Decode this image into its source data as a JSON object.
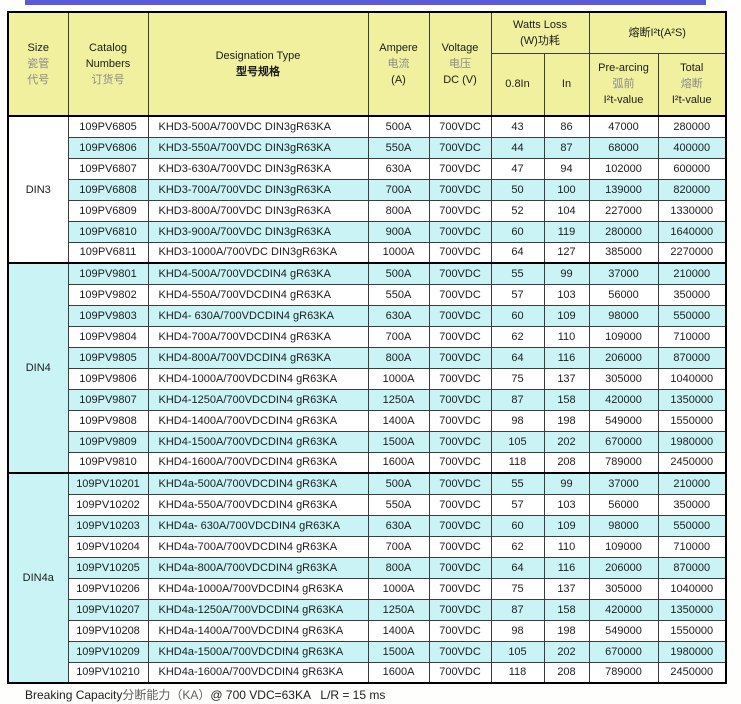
{
  "accents": {
    "top_bar_color": "#5b5bd8",
    "header_bg": "#f0f09e",
    "alt_row_bg": "#c9f3f5"
  },
  "header": {
    "size_en": "Size",
    "size_zh1": "瓷管",
    "size_zh2": "代号",
    "catalog_en1": "Catalog",
    "catalog_en2": "Numbers",
    "catalog_zh": "订货号",
    "designation_en": "Designation Type",
    "designation_zh": "型号规格",
    "ampere_en": "Ampere",
    "ampere_zh": "电流",
    "ampere_unit": "(A)",
    "voltage_en": "Voltage",
    "voltage_zh": "电压",
    "voltage_unit": "DC (V)",
    "watts_en": "Watts Loss",
    "watts_zh": "(W)功耗",
    "watts_sub_08": "0.8In",
    "watts_sub_in": "In",
    "i2t_group": "熔断I²t(A²S)",
    "prearcing_en": "Pre-arcing",
    "prearcing_zh": "弧前",
    "prearcing_val": "I²t-value",
    "total_en": "Total",
    "total_zh": "熔断",
    "total_val": "I²t-value"
  },
  "sections": [
    {
      "size": "DIN3",
      "rows": [
        {
          "catalog": "109PV6805",
          "designation": "KHD3-500A/700VDC DIN3gR63KA",
          "ampere": "500A",
          "voltage": "700VDC",
          "w08": "43",
          "win": "86",
          "pre": "47000",
          "total": "280000"
        },
        {
          "catalog": "109PV6806",
          "designation": "KHD3-550A/700VDC DIN3gR63KA",
          "ampere": "550A",
          "voltage": "700VDC",
          "w08": "44",
          "win": "87",
          "pre": "68000",
          "total": "400000"
        },
        {
          "catalog": "109PV6807",
          "designation": "KHD3-630A/700VDC DIN3gR63KA",
          "ampere": "630A",
          "voltage": "700VDC",
          "w08": "47",
          "win": "94",
          "pre": "102000",
          "total": "600000"
        },
        {
          "catalog": "109PV6808",
          "designation": "KHD3-700A/700VDC DIN3gR63KA",
          "ampere": "700A",
          "voltage": "700VDC",
          "w08": "50",
          "win": "100",
          "pre": "139000",
          "total": "820000"
        },
        {
          "catalog": "109PV6809",
          "designation": "KHD3-800A/700VDC DIN3gR63KA",
          "ampere": "800A",
          "voltage": "700VDC",
          "w08": "52",
          "win": "104",
          "pre": "227000",
          "total": "1330000"
        },
        {
          "catalog": "109PV6810",
          "designation": "KHD3-900A/700VDC DIN3gR63KA",
          "ampere": "900A",
          "voltage": "700VDC",
          "w08": "60",
          "win": "119",
          "pre": "280000",
          "total": "1640000"
        },
        {
          "catalog": "109PV6811",
          "designation": "KHD3-1000A/700VDC DIN3gR63KA",
          "ampere": "1000A",
          "voltage": "700VDC",
          "w08": "64",
          "win": "127",
          "pre": "385000",
          "total": "2270000"
        }
      ]
    },
    {
      "size": "DIN4",
      "rows": [
        {
          "catalog": "109PV9801",
          "designation": "KHD4-500A/700VDCDIN4 gR63KA",
          "ampere": "500A",
          "voltage": "700VDC",
          "w08": "55",
          "win": "99",
          "pre": "37000",
          "total": "210000"
        },
        {
          "catalog": "109PV9802",
          "designation": "KHD4-550A/700VDCDIN4 gR63KA",
          "ampere": "550A",
          "voltage": "700VDC",
          "w08": "57",
          "win": "103",
          "pre": "56000",
          "total": "350000"
        },
        {
          "catalog": "109PV9803",
          "designation": "KHD4- 630A/700VDCDIN4 gR63KA",
          "ampere": "630A",
          "voltage": "700VDC",
          "w08": "60",
          "win": "109",
          "pre": "98000",
          "total": "550000"
        },
        {
          "catalog": "109PV9804",
          "designation": "KHD4-700A/700VDCDIN4 gR63KA",
          "ampere": "700A",
          "voltage": "700VDC",
          "w08": "62",
          "win": "110",
          "pre": "109000",
          "total": "710000"
        },
        {
          "catalog": "109PV9805",
          "designation": "KHD4-800A/700VDCDIN4 gR63KA",
          "ampere": "800A",
          "voltage": "700VDC",
          "w08": "64",
          "win": "116",
          "pre": "206000",
          "total": "870000"
        },
        {
          "catalog": "109PV9806",
          "designation": "KHD4-1000A/700VDCDIN4 gR63KA",
          "ampere": "1000A",
          "voltage": "700VDC",
          "w08": "75",
          "win": "137",
          "pre": "305000",
          "total": "1040000"
        },
        {
          "catalog": "109PV9807",
          "designation": "KHD4-1250A/700VDCDIN4 gR63KA",
          "ampere": "1250A",
          "voltage": "700VDC",
          "w08": "87",
          "win": "158",
          "pre": "420000",
          "total": "1350000"
        },
        {
          "catalog": "109PV9808",
          "designation": "KHD4-1400A/700VDCDIN4 gR63KA",
          "ampere": "1400A",
          "voltage": "700VDC",
          "w08": "98",
          "win": "198",
          "pre": "549000",
          "total": "1550000"
        },
        {
          "catalog": "109PV9809",
          "designation": "KHD4-1500A/700VDCDIN4 gR63KA",
          "ampere": "1500A",
          "voltage": "700VDC",
          "w08": "105",
          "win": "202",
          "pre": "670000",
          "total": "1980000"
        },
        {
          "catalog": "109PV9810",
          "designation": "KHD4-1600A/700VDCDIN4 gR63KA",
          "ampere": "1600A",
          "voltage": "700VDC",
          "w08": "118",
          "win": "208",
          "pre": "789000",
          "total": "2450000"
        }
      ]
    },
    {
      "size": "DIN4a",
      "rows": [
        {
          "catalog": "109PV10201",
          "designation": "KHD4a-500A/700VDCDIN4 gR63KA",
          "ampere": "500A",
          "voltage": "700VDC",
          "w08": "55",
          "win": "99",
          "pre": "37000",
          "total": "210000"
        },
        {
          "catalog": "109PV10202",
          "designation": "KHD4a-550A/700VDCDIN4 gR63KA",
          "ampere": "550A",
          "voltage": "700VDC",
          "w08": "57",
          "win": "103",
          "pre": "56000",
          "total": "350000"
        },
        {
          "catalog": "109PV10203",
          "designation": "KHD4a- 630A/700VDCDIN4 gR63KA",
          "ampere": "630A",
          "voltage": "700VDC",
          "w08": "60",
          "win": "109",
          "pre": "98000",
          "total": "550000"
        },
        {
          "catalog": "109PV10204",
          "designation": "KHD4a-700A/700VDCDIN4 gR63KA",
          "ampere": "700A",
          "voltage": "700VDC",
          "w08": "62",
          "win": "110",
          "pre": "109000",
          "total": "710000"
        },
        {
          "catalog": "109PV10205",
          "designation": "KHD4a-800A/700VDCDIN4 gR63KA",
          "ampere": "800A",
          "voltage": "700VDC",
          "w08": "64",
          "win": "116",
          "pre": "206000",
          "total": "870000"
        },
        {
          "catalog": "109PV10206",
          "designation": "KHD4a-1000A/700VDCDIN4 gR63KA",
          "ampere": "1000A",
          "voltage": "700VDC",
          "w08": "75",
          "win": "137",
          "pre": "305000",
          "total": "1040000"
        },
        {
          "catalog": "109PV10207",
          "designation": "KHD4a-1250A/700VDCDIN4 gR63KA",
          "ampere": "1250A",
          "voltage": "700VDC",
          "w08": "87",
          "win": "158",
          "pre": "420000",
          "total": "1350000"
        },
        {
          "catalog": "109PV10208",
          "designation": "KHD4a-1400A/700VDCDIN4 gR63KA",
          "ampere": "1400A",
          "voltage": "700VDC",
          "w08": "98",
          "win": "198",
          "pre": "549000",
          "total": "1550000"
        },
        {
          "catalog": "109PV10209",
          "designation": "KHD4a-1500A/700VDCDIN4 gR63KA",
          "ampere": "1500A",
          "voltage": "700VDC",
          "w08": "105",
          "win": "202",
          "pre": "670000",
          "total": "1980000"
        },
        {
          "catalog": "109PV10210",
          "designation": "KHD4a-1600A/700VDCDIN4 gR63KA",
          "ampere": "1600A",
          "voltage": "700VDC",
          "w08": "118",
          "win": "208",
          "pre": "789000",
          "total": "2450000"
        }
      ]
    }
  ],
  "footer": {
    "part1": "Breaking Capacity",
    "part2": "分断能力（KA）",
    "part3": "@ 700 VDC=63KA   L/R = 15 ms"
  }
}
